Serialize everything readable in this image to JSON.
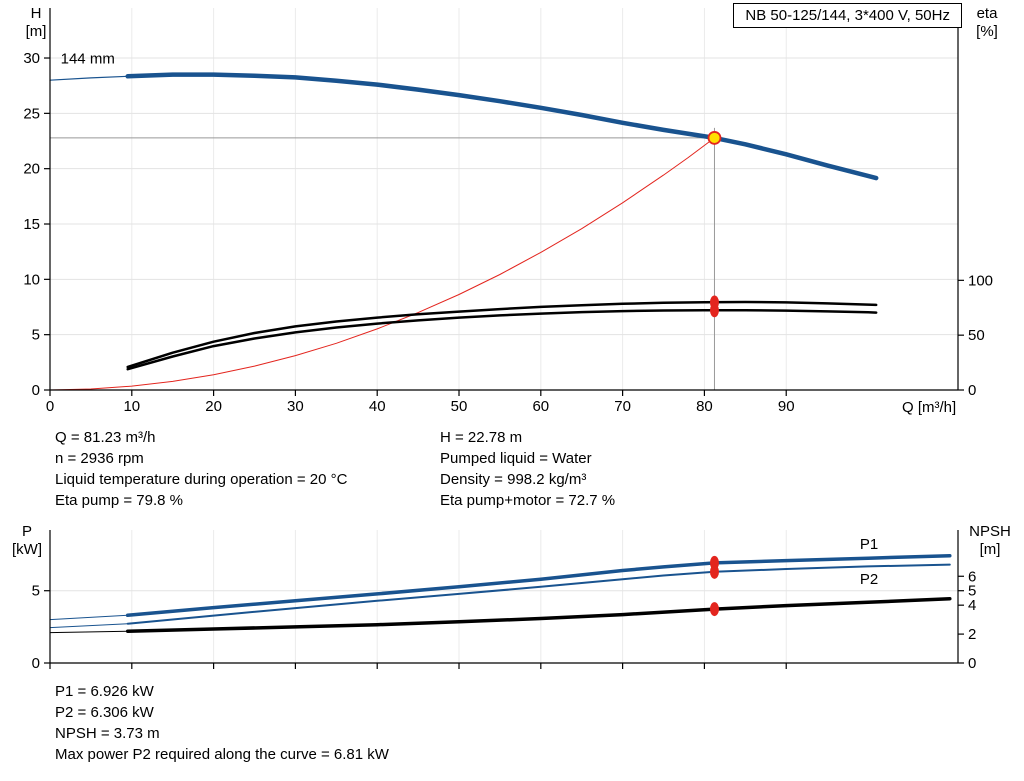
{
  "info": {
    "left": [
      "Q = 81.23 m³/h",
      "n = 2936 rpm",
      "Liquid temperature during operation = 20 °C",
      "Eta pump = 79.8 %"
    ],
    "right": [
      "H = 22.78 m",
      "Pumped liquid = Water",
      "Density = 998.2 kg/m³",
      "Eta pump+motor = 72.7 %"
    ]
  },
  "bottom_info": [
    "P1 = 6.926 kW",
    "P2 = 6.306 kW",
    "NPSH = 3.73 m",
    "Max power P2 required along the curve = 6.81 kW"
  ],
  "colors": {
    "curve_blue": "#19538f",
    "curve_black": "#000000",
    "marker_red": "#e3251e",
    "duty_yellow": "#ffdf00",
    "crosshair_gray": "#999999"
  },
  "chart_data": [
    {
      "type": "line",
      "title": "NB 50-125/144, 3*400 V, 50Hz",
      "xlabel": "Q [m³/h]",
      "ylabel_left": [
        "H",
        "[m]"
      ],
      "ylabel_right": [
        "eta",
        "[%]"
      ],
      "xlim": [
        0,
        111
      ],
      "ylim_left": [
        0,
        34.52
      ],
      "ylim_right": [
        0,
        348.3
      ],
      "xticks": [
        0,
        10,
        20,
        30,
        40,
        50,
        60,
        70,
        80,
        90
      ],
      "yticks_left": [
        0,
        5,
        10,
        15,
        20,
        25,
        30
      ],
      "yticks_right": [
        0,
        50,
        100
      ],
      "grid": true,
      "crosshair": {
        "x": 81.23,
        "y": 22.78
      },
      "series": [
        {
          "name": "h-curve-lead",
          "axis": "left",
          "color": "#19538f",
          "width": 1.2,
          "points": [
            [
              0,
              28.0
            ],
            [
              5,
              28.2
            ],
            [
              9.5,
              28.35
            ]
          ]
        },
        {
          "name": "h-curve-144mm",
          "axis": "left",
          "color": "#19538f",
          "width": 4.5,
          "points": [
            [
              9.5,
              28.35
            ],
            [
              15,
              28.5
            ],
            [
              20,
              28.5
            ],
            [
              25,
              28.4
            ],
            [
              30,
              28.25
            ],
            [
              35,
              27.95
            ],
            [
              40,
              27.6
            ],
            [
              45,
              27.15
            ],
            [
              50,
              26.65
            ],
            [
              55,
              26.1
            ],
            [
              60,
              25.5
            ],
            [
              65,
              24.85
            ],
            [
              70,
              24.15
            ],
            [
              75,
              23.5
            ],
            [
              81.23,
              22.78
            ],
            [
              85,
              22.2
            ],
            [
              90,
              21.3
            ],
            [
              95,
              20.3
            ],
            [
              100,
              19.35
            ],
            [
              101,
              19.15
            ]
          ]
        },
        {
          "name": "system-curve",
          "axis": "left",
          "color": "#e3251e",
          "width": 1,
          "points": [
            [
              0,
              0
            ],
            [
              5,
              0.09
            ],
            [
              10,
              0.35
            ],
            [
              15,
              0.78
            ],
            [
              20,
              1.38
            ],
            [
              25,
              2.16
            ],
            [
              30,
              3.11
            ],
            [
              35,
              4.22
            ],
            [
              40,
              5.52
            ],
            [
              45,
              6.99
            ],
            [
              50,
              8.63
            ],
            [
              55,
              10.44
            ],
            [
              60,
              12.43
            ],
            [
              65,
              14.58
            ],
            [
              70,
              16.92
            ],
            [
              75,
              19.42
            ],
            [
              78,
              21.0
            ],
            [
              81.23,
              22.78
            ]
          ]
        },
        {
          "name": "eta-pump-curve",
          "axis": "right",
          "color": "#000000",
          "width": 2.5,
          "points": [
            [
              9.5,
              21
            ],
            [
              15,
              34
            ],
            [
              20,
              44
            ],
            [
              25,
              52
            ],
            [
              30,
              58
            ],
            [
              35,
              62.5
            ],
            [
              40,
              66
            ],
            [
              45,
              69
            ],
            [
              50,
              71.5
            ],
            [
              55,
              73.8
            ],
            [
              60,
              75.8
            ],
            [
              65,
              77.3
            ],
            [
              70,
              78.6
            ],
            [
              75,
              79.5
            ],
            [
              80,
              80
            ],
            [
              85,
              80.2
            ],
            [
              90,
              79.9
            ],
            [
              95,
              79
            ],
            [
              100,
              77.9
            ],
            [
              101,
              77.6
            ]
          ]
        },
        {
          "name": "eta-pump-motor-curve",
          "axis": "right",
          "color": "#000000",
          "width": 2.5,
          "points": [
            [
              9.5,
              19
            ],
            [
              15,
              30.5
            ],
            [
              20,
              40
            ],
            [
              25,
              47
            ],
            [
              30,
              52.5
            ],
            [
              35,
              57
            ],
            [
              40,
              60.5
            ],
            [
              45,
              63.5
            ],
            [
              50,
              66
            ],
            [
              55,
              68
            ],
            [
              60,
              69.7
            ],
            [
              65,
              71
            ],
            [
              70,
              71.9
            ],
            [
              75,
              72.5
            ],
            [
              80,
              72.8
            ],
            [
              85,
              72.8
            ],
            [
              90,
              72.4
            ],
            [
              95,
              71.7
            ],
            [
              100,
              70.8
            ],
            [
              101,
              70.6
            ]
          ]
        }
      ],
      "markers": [
        {
          "name": "eta-pump-marker",
          "axis": "right",
          "x": 81.23,
          "y": 79.8,
          "rx": 4.5,
          "ry": 7,
          "fill": "#e3251e"
        },
        {
          "name": "eta-pump-motor-marker",
          "axis": "right",
          "x": 81.23,
          "y": 72.7,
          "rx": 4.5,
          "ry": 7,
          "fill": "#e3251e"
        },
        {
          "name": "duty-point",
          "axis": "left",
          "x": 81.23,
          "y": 22.78,
          "rx": 6,
          "ry": 6,
          "fill": "#ffdf00",
          "stroke": "#e3251e"
        }
      ],
      "annotations": [
        {
          "name": "impeller-size-label",
          "text": "144 mm",
          "x": 1.3,
          "y": 29.5,
          "color": "#000000"
        }
      ]
    },
    {
      "type": "line",
      "xlabel": "",
      "ylabel_left": [
        "P",
        "[kW]"
      ],
      "ylabel_right": [
        "NPSH",
        "[m]"
      ],
      "xlim": [
        0,
        111
      ],
      "ylim_left": [
        0,
        9.2
      ],
      "ylim_right": [
        0,
        9.2
      ],
      "xticks": [
        0,
        10,
        20,
        30,
        40,
        50,
        60,
        70,
        80,
        90
      ],
      "xtick_labels": false,
      "yticks_left": [
        0,
        5
      ],
      "yticks_right": [
        0,
        2,
        4,
        5,
        6
      ],
      "grid": true,
      "series": [
        {
          "name": "p1-curve-lead",
          "axis": "left",
          "color": "#19538f",
          "width": 1,
          "points": [
            [
              0,
              3.0
            ],
            [
              9.5,
              3.3
            ]
          ]
        },
        {
          "name": "p1-curve",
          "axis": "left",
          "color": "#19538f",
          "width": 3.5,
          "points": [
            [
              9.5,
              3.3
            ],
            [
              20,
              3.83
            ],
            [
              30,
              4.3
            ],
            [
              40,
              4.78
            ],
            [
              50,
              5.28
            ],
            [
              60,
              5.8
            ],
            [
              70,
              6.4
            ],
            [
              75,
              6.65
            ],
            [
              81.23,
              6.926
            ],
            [
              90,
              7.08
            ],
            [
              100,
              7.25
            ],
            [
              110,
              7.42
            ]
          ]
        },
        {
          "name": "p2-curve-lead",
          "axis": "left",
          "color": "#19538f",
          "width": 1,
          "points": [
            [
              0,
              2.45
            ],
            [
              9.5,
              2.72
            ]
          ]
        },
        {
          "name": "p2-curve",
          "axis": "left",
          "color": "#19538f",
          "width": 2,
          "points": [
            [
              9.5,
              2.72
            ],
            [
              20,
              3.28
            ],
            [
              30,
              3.8
            ],
            [
              40,
              4.3
            ],
            [
              50,
              4.78
            ],
            [
              60,
              5.27
            ],
            [
              70,
              5.8
            ],
            [
              75,
              6.05
            ],
            [
              81.23,
              6.306
            ],
            [
              90,
              6.5
            ],
            [
              100,
              6.68
            ],
            [
              110,
              6.81
            ]
          ]
        },
        {
          "name": "npsh-curve-lead",
          "axis": "right",
          "color": "#000000",
          "width": 1,
          "points": [
            [
              0,
              2.1
            ],
            [
              9.5,
              2.2
            ]
          ]
        },
        {
          "name": "npsh-curve",
          "axis": "right",
          "color": "#000000",
          "width": 3.5,
          "points": [
            [
              9.5,
              2.2
            ],
            [
              20,
              2.35
            ],
            [
              30,
              2.5
            ],
            [
              40,
              2.65
            ],
            [
              50,
              2.85
            ],
            [
              60,
              3.08
            ],
            [
              70,
              3.35
            ],
            [
              81.23,
              3.73
            ],
            [
              90,
              3.97
            ],
            [
              100,
              4.2
            ],
            [
              110,
              4.45
            ]
          ]
        }
      ],
      "markers": [
        {
          "name": "p1-marker",
          "axis": "left",
          "x": 81.23,
          "y": 6.926,
          "rx": 4.5,
          "ry": 7,
          "fill": "#e3251e"
        },
        {
          "name": "p2-marker",
          "axis": "left",
          "x": 81.23,
          "y": 6.306,
          "rx": 4.5,
          "ry": 7,
          "fill": "#e3251e"
        },
        {
          "name": "npsh-marker",
          "axis": "right",
          "x": 81.23,
          "y": 3.73,
          "rx": 4.5,
          "ry": 7,
          "fill": "#e3251e"
        }
      ],
      "annotations": [
        {
          "name": "p1-curve-label",
          "text": "P1",
          "x": 99,
          "y": 7.9,
          "color": "#19538f"
        },
        {
          "name": "p2-curve-label",
          "text": "P2",
          "x": 99,
          "y": 5.45,
          "color": "#19538f"
        }
      ]
    }
  ]
}
